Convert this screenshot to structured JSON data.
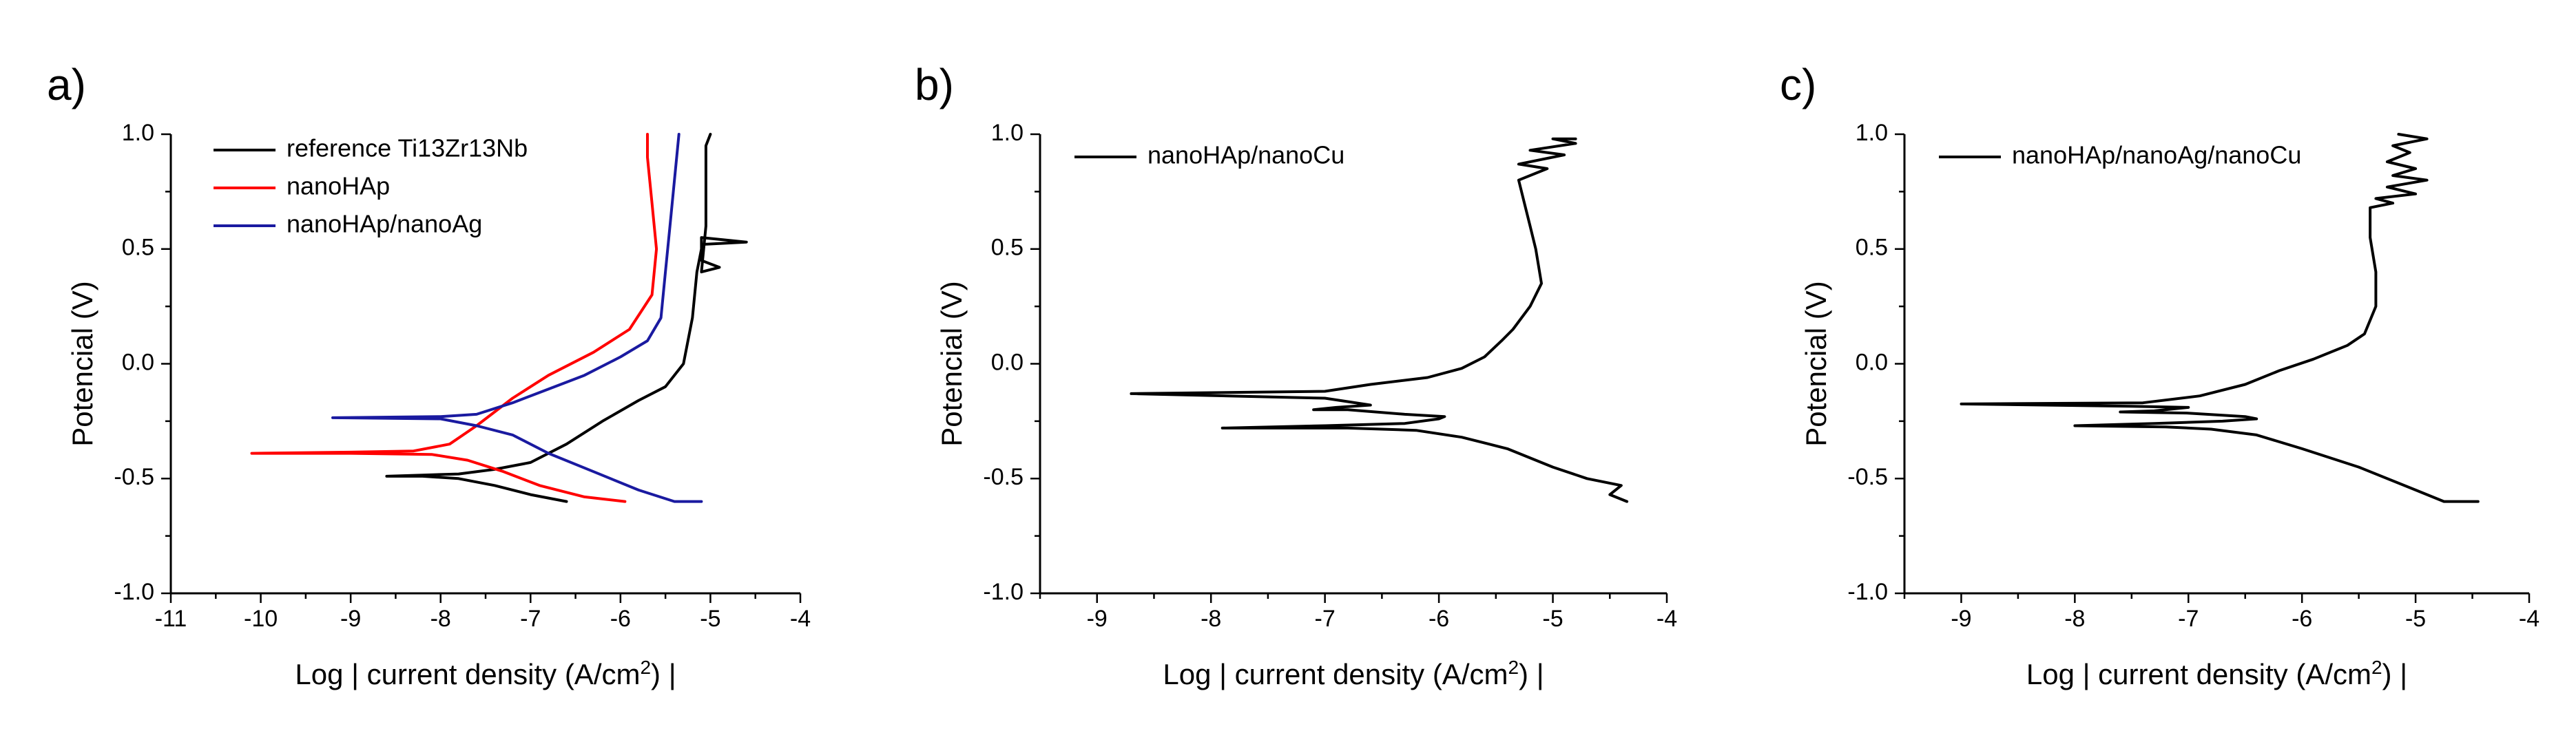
{
  "chart_data": [
    {
      "id": "a",
      "panel_label": "a)",
      "type": "line",
      "xlabel_main": "Log | current density (A/cm",
      "xlabel_sup": "2",
      "xlabel_tail": ") |",
      "ylabel": "Potencial (V)",
      "xlim": [
        -11,
        -4
      ],
      "ylim": [
        -1.0,
        1.0
      ],
      "xticks": [
        -11,
        -10,
        -9,
        -8,
        -7,
        -6,
        -5,
        -4
      ],
      "xtick_labels": [
        "-11",
        "-10",
        "-9",
        "-8",
        "-7",
        "-6",
        "-5",
        "-4"
      ],
      "yticks": [
        -1.0,
        -0.5,
        0.0,
        0.5,
        1.0
      ],
      "ytick_labels": [
        "-1.0",
        "-0.5",
        "0.0",
        "0.5",
        "1.0"
      ],
      "legend_position": "top-left",
      "series": [
        {
          "name": "reference Ti13Zr13Nb",
          "color": "#000000",
          "points": [
            [
              -6.6,
              -0.6
            ],
            [
              -7.0,
              -0.57
            ],
            [
              -7.4,
              -0.53
            ],
            [
              -7.8,
              -0.5
            ],
            [
              -8.2,
              -0.49
            ],
            [
              -8.6,
              -0.49
            ],
            [
              -8.2,
              -0.485
            ],
            [
              -7.8,
              -0.48
            ],
            [
              -7.4,
              -0.46
            ],
            [
              -7.0,
              -0.43
            ],
            [
              -6.6,
              -0.35
            ],
            [
              -6.2,
              -0.25
            ],
            [
              -5.8,
              -0.16
            ],
            [
              -5.5,
              -0.1
            ],
            [
              -5.3,
              0.0
            ],
            [
              -5.2,
              0.2
            ],
            [
              -5.15,
              0.4
            ],
            [
              -5.1,
              0.5
            ],
            [
              -5.1,
              0.55
            ],
            [
              -4.6,
              0.53
            ],
            [
              -5.1,
              0.52
            ],
            [
              -5.1,
              0.45
            ],
            [
              -4.9,
              0.42
            ],
            [
              -5.1,
              0.4
            ],
            [
              -5.05,
              0.6
            ],
            [
              -5.05,
              0.8
            ],
            [
              -5.05,
              0.95
            ],
            [
              -5.0,
              1.0
            ]
          ]
        },
        {
          "name": "nanoHAp",
          "color": "#ff0000",
          "points": [
            [
              -5.95,
              -0.6
            ],
            [
              -6.4,
              -0.58
            ],
            [
              -6.9,
              -0.53
            ],
            [
              -7.3,
              -0.47
            ],
            [
              -7.7,
              -0.42
            ],
            [
              -8.1,
              -0.395
            ],
            [
              -9.0,
              -0.39
            ],
            [
              -10.1,
              -0.39
            ],
            [
              -9.0,
              -0.385
            ],
            [
              -8.3,
              -0.38
            ],
            [
              -7.9,
              -0.35
            ],
            [
              -7.6,
              -0.27
            ],
            [
              -7.2,
              -0.15
            ],
            [
              -6.8,
              -0.05
            ],
            [
              -6.3,
              0.05
            ],
            [
              -5.9,
              0.15
            ],
            [
              -5.65,
              0.3
            ],
            [
              -5.6,
              0.5
            ],
            [
              -5.65,
              0.7
            ],
            [
              -5.7,
              0.9
            ],
            [
              -5.7,
              1.0
            ]
          ]
        },
        {
          "name": "nanoHAp/nanoAg",
          "color": "#1a1aa0",
          "points": [
            [
              -5.1,
              -0.6
            ],
            [
              -5.4,
              -0.6
            ],
            [
              -5.8,
              -0.55
            ],
            [
              -6.3,
              -0.47
            ],
            [
              -6.8,
              -0.39
            ],
            [
              -7.2,
              -0.31
            ],
            [
              -7.6,
              -0.27
            ],
            [
              -8.0,
              -0.24
            ],
            [
              -9.2,
              -0.235
            ],
            [
              -8.0,
              -0.23
            ],
            [
              -7.6,
              -0.22
            ],
            [
              -7.2,
              -0.17
            ],
            [
              -6.8,
              -0.11
            ],
            [
              -6.4,
              -0.05
            ],
            [
              -6.0,
              0.03
            ],
            [
              -5.7,
              0.1
            ],
            [
              -5.55,
              0.2
            ],
            [
              -5.5,
              0.4
            ],
            [
              -5.45,
              0.6
            ],
            [
              -5.4,
              0.8
            ],
            [
              -5.35,
              1.0
            ]
          ]
        }
      ]
    },
    {
      "id": "b",
      "panel_label": "b)",
      "type": "line",
      "xlabel_main": "Log | current density (A/cm",
      "xlabel_sup": "2",
      "xlabel_tail": ") |",
      "ylabel": "Potencial (V)",
      "xlim": [
        -9.5,
        -4
      ],
      "ylim": [
        -1.0,
        1.0
      ],
      "xticks": [
        -9,
        -8,
        -7,
        -6,
        -5,
        -4
      ],
      "xtick_labels": [
        "-9",
        "-8",
        "-7",
        "-6",
        "-5",
        "-4"
      ],
      "yticks": [
        -1.0,
        -0.5,
        0.0,
        0.5,
        1.0
      ],
      "ytick_labels": [
        "-1.0",
        "-0.5",
        "0.0",
        "0.5",
        "1.0"
      ],
      "legend_position": "top-left",
      "series": [
        {
          "name": "nanoHAp/nanoCu",
          "color": "#000000",
          "points": [
            [
              -4.35,
              -0.6
            ],
            [
              -4.5,
              -0.57
            ],
            [
              -4.4,
              -0.53
            ],
            [
              -4.7,
              -0.5
            ],
            [
              -5.0,
              -0.45
            ],
            [
              -5.4,
              -0.37
            ],
            [
              -5.8,
              -0.32
            ],
            [
              -6.2,
              -0.29
            ],
            [
              -6.8,
              -0.28
            ],
            [
              -7.9,
              -0.28
            ],
            [
              -7.0,
              -0.27
            ],
            [
              -6.3,
              -0.26
            ],
            [
              -6.0,
              -0.24
            ],
            [
              -5.95,
              -0.23
            ],
            [
              -6.3,
              -0.22
            ],
            [
              -6.8,
              -0.2
            ],
            [
              -7.1,
              -0.2
            ],
            [
              -6.9,
              -0.19
            ],
            [
              -6.6,
              -0.18
            ],
            [
              -7.0,
              -0.15
            ],
            [
              -8.7,
              -0.13
            ],
            [
              -7.0,
              -0.12
            ],
            [
              -6.6,
              -0.09
            ],
            [
              -6.1,
              -0.06
            ],
            [
              -5.8,
              -0.02
            ],
            [
              -5.6,
              0.03
            ],
            [
              -5.45,
              0.1
            ],
            [
              -5.35,
              0.15
            ],
            [
              -5.2,
              0.25
            ],
            [
              -5.1,
              0.35
            ],
            [
              -5.15,
              0.5
            ],
            [
              -5.2,
              0.6
            ],
            [
              -5.25,
              0.7
            ],
            [
              -5.3,
              0.8
            ],
            [
              -5.05,
              0.85
            ],
            [
              -5.3,
              0.87
            ],
            [
              -4.9,
              0.91
            ],
            [
              -5.2,
              0.93
            ],
            [
              -4.8,
              0.96
            ],
            [
              -5.0,
              0.98
            ],
            [
              -4.8,
              0.98
            ]
          ]
        }
      ]
    },
    {
      "id": "c",
      "panel_label": "c)",
      "type": "line",
      "xlabel_main": "Log | current density (A/cm",
      "xlabel_sup": "2",
      "xlabel_tail": ") |",
      "ylabel": "Potencial (V)",
      "xlim": [
        -9.5,
        -4
      ],
      "ylim": [
        -1.0,
        1.0
      ],
      "xticks": [
        -9,
        -8,
        -7,
        -6,
        -5,
        -4
      ],
      "xtick_labels": [
        "-9",
        "-8",
        "-7",
        "-6",
        "-5",
        "-4"
      ],
      "yticks": [
        -1.0,
        -0.5,
        0.0,
        0.5,
        1.0
      ],
      "ytick_labels": [
        "-1.0",
        "-0.5",
        "0.0",
        "0.5",
        "1.0"
      ],
      "legend_position": "top-left",
      "series": [
        {
          "name": "nanoHAp/nanoAg/nanoCu",
          "color": "#000000",
          "points": [
            [
              -4.45,
              -0.6
            ],
            [
              -4.75,
              -0.6
            ],
            [
              -5.0,
              -0.55
            ],
            [
              -5.5,
              -0.45
            ],
            [
              -6.0,
              -0.37
            ],
            [
              -6.4,
              -0.31
            ],
            [
              -6.8,
              -0.285
            ],
            [
              -7.2,
              -0.275
            ],
            [
              -8.0,
              -0.27
            ],
            [
              -7.3,
              -0.26
            ],
            [
              -6.7,
              -0.25
            ],
            [
              -6.4,
              -0.24
            ],
            [
              -6.5,
              -0.23
            ],
            [
              -7.0,
              -0.215
            ],
            [
              -7.6,
              -0.21
            ],
            [
              -7.3,
              -0.205
            ],
            [
              -7.0,
              -0.19
            ],
            [
              -7.5,
              -0.185
            ],
            [
              -9.0,
              -0.175
            ],
            [
              -7.4,
              -0.17
            ],
            [
              -6.9,
              -0.14
            ],
            [
              -6.5,
              -0.09
            ],
            [
              -6.2,
              -0.03
            ],
            [
              -5.9,
              0.02
            ],
            [
              -5.6,
              0.08
            ],
            [
              -5.45,
              0.13
            ],
            [
              -5.35,
              0.25
            ],
            [
              -5.35,
              0.4
            ],
            [
              -5.4,
              0.55
            ],
            [
              -5.4,
              0.68
            ],
            [
              -5.2,
              0.7
            ],
            [
              -5.35,
              0.72
            ],
            [
              -5.0,
              0.74
            ],
            [
              -5.25,
              0.77
            ],
            [
              -4.9,
              0.8
            ],
            [
              -5.2,
              0.82
            ],
            [
              -5.0,
              0.85
            ],
            [
              -5.25,
              0.88
            ],
            [
              -5.05,
              0.92
            ],
            [
              -5.2,
              0.95
            ],
            [
              -4.9,
              0.98
            ],
            [
              -5.15,
              1.0
            ]
          ]
        }
      ]
    }
  ]
}
